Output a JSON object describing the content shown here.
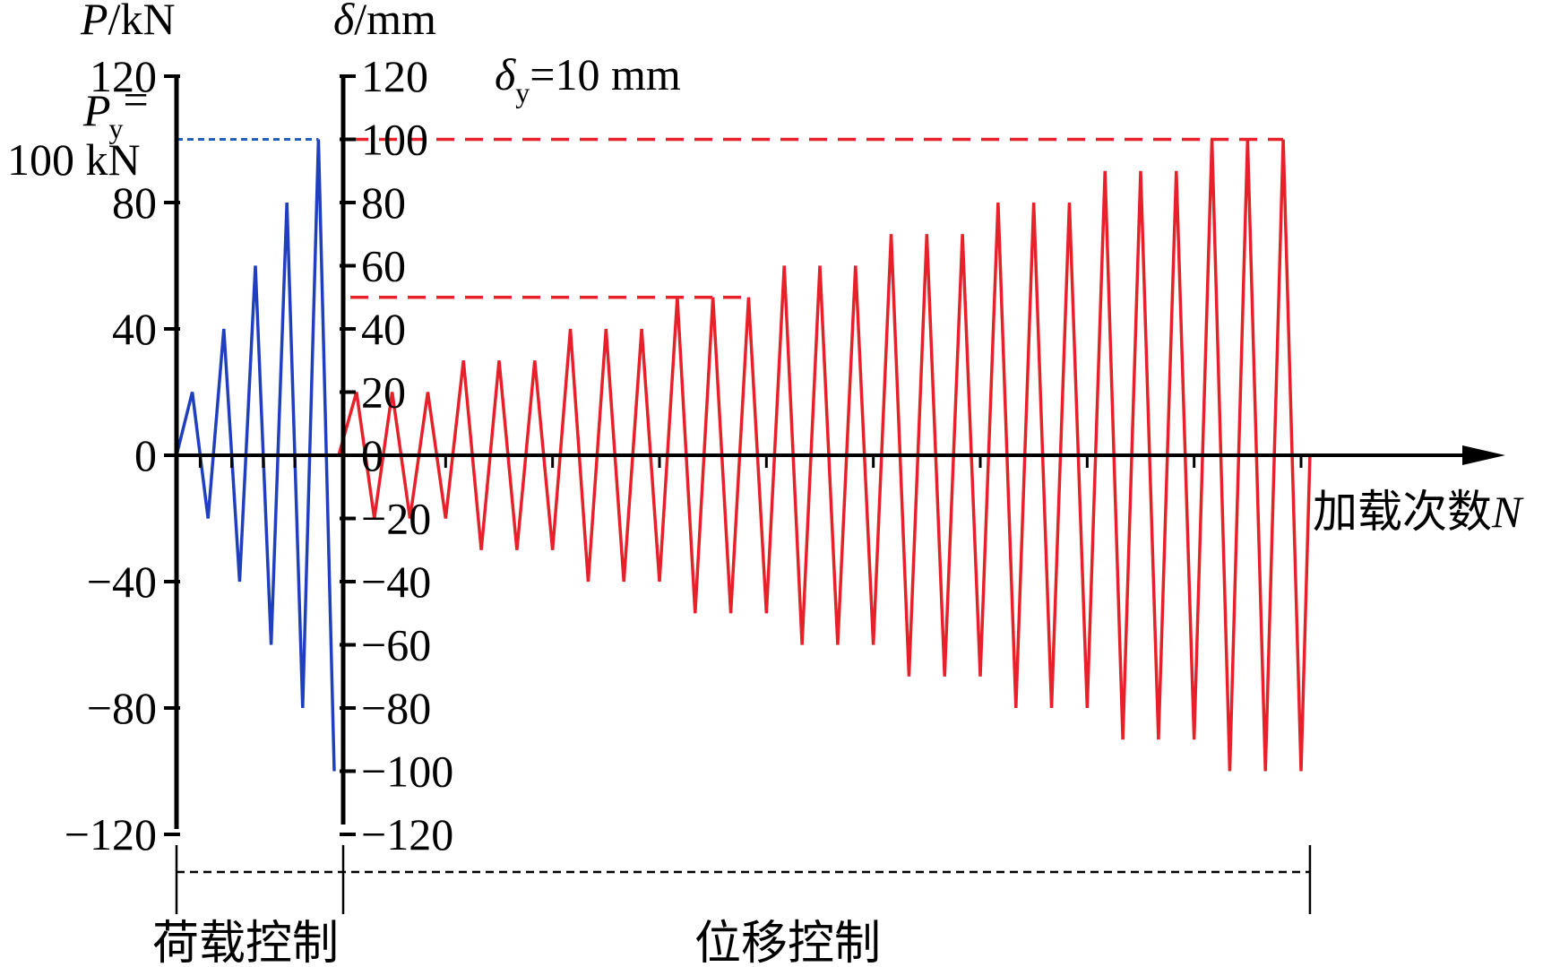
{
  "chart_data": {
    "type": "line",
    "left_axis": {
      "label_var": "P",
      "label_unit": "/kN",
      "range": [
        -120,
        120
      ],
      "ticks": [
        120,
        80,
        40,
        0,
        -40,
        -80,
        -120
      ],
      "tick_labels": [
        "120",
        "80",
        "40",
        "0",
        "−40",
        "−80",
        "−120"
      ]
    },
    "right_axis": {
      "label_var": "δ",
      "label_unit": "/mm",
      "range": [
        -120,
        120
      ],
      "ticks": [
        120,
        100,
        80,
        60,
        40,
        20,
        0,
        -20,
        -40,
        -60,
        -80,
        -100,
        -120
      ],
      "tick_labels": [
        "120",
        "100",
        "80",
        "60",
        "40",
        "20",
        "0",
        "−20",
        "−40",
        "−60",
        "−80",
        "−100",
        "−120"
      ]
    },
    "x_axis": {
      "label": "加载次数",
      "label_var": "N"
    },
    "load_control": {
      "label": "荷载控制",
      "color": "#1f3fbf",
      "amplitudes": [
        20,
        40,
        60,
        80,
        100
      ],
      "cycles_per_level": 1,
      "yield_label_var": "P",
      "yield_label_sub": "y",
      "yield_label_eq": "=",
      "yield_label_value": "100 kN",
      "yield_line_value": 100
    },
    "displacement_control": {
      "label": "位移控制",
      "color": "#e8202a",
      "amplitudes": [
        20,
        30,
        40,
        50,
        60,
        70,
        80,
        90,
        100
      ],
      "cycles_per_level": 3,
      "yield_label_var": "δ",
      "yield_label_sub": "y",
      "yield_label_value": "=10 mm",
      "reference_lines": [
        100,
        50
      ]
    },
    "grid": false,
    "legend": "none"
  }
}
